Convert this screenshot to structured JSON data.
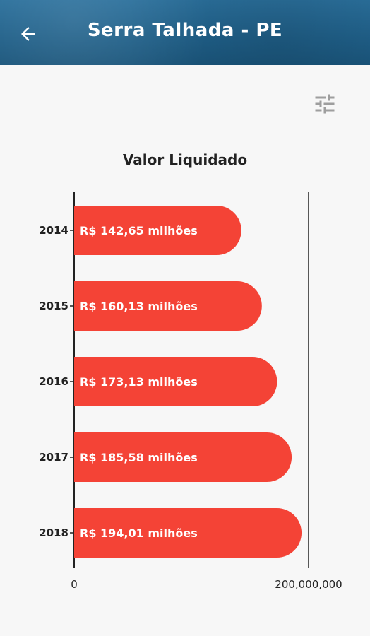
{
  "header": {
    "title": "Serra Talhada - PE",
    "back_icon": "arrow-left-icon",
    "background": "#1f5f88"
  },
  "toolbar": {
    "filter_icon": "sliders-icon"
  },
  "chart_data": {
    "type": "bar",
    "orientation": "horizontal",
    "title": "Valor Liquidado",
    "categories": [
      "2014",
      "2015",
      "2016",
      "2017",
      "2018"
    ],
    "values": [
      142650000,
      160130000,
      173130000,
      185580000,
      194010000
    ],
    "data_labels": [
      "R$ 142,65 milhões",
      "R$ 160,13 milhões",
      "R$ 173,13 milhões",
      "R$ 185,58 milhões",
      "R$ 194,01 milhões"
    ],
    "xlim": [
      0,
      200000000
    ],
    "x_ticks": [
      "0",
      "200,000,000"
    ],
    "bar_color": "#f44336",
    "grid": false
  }
}
